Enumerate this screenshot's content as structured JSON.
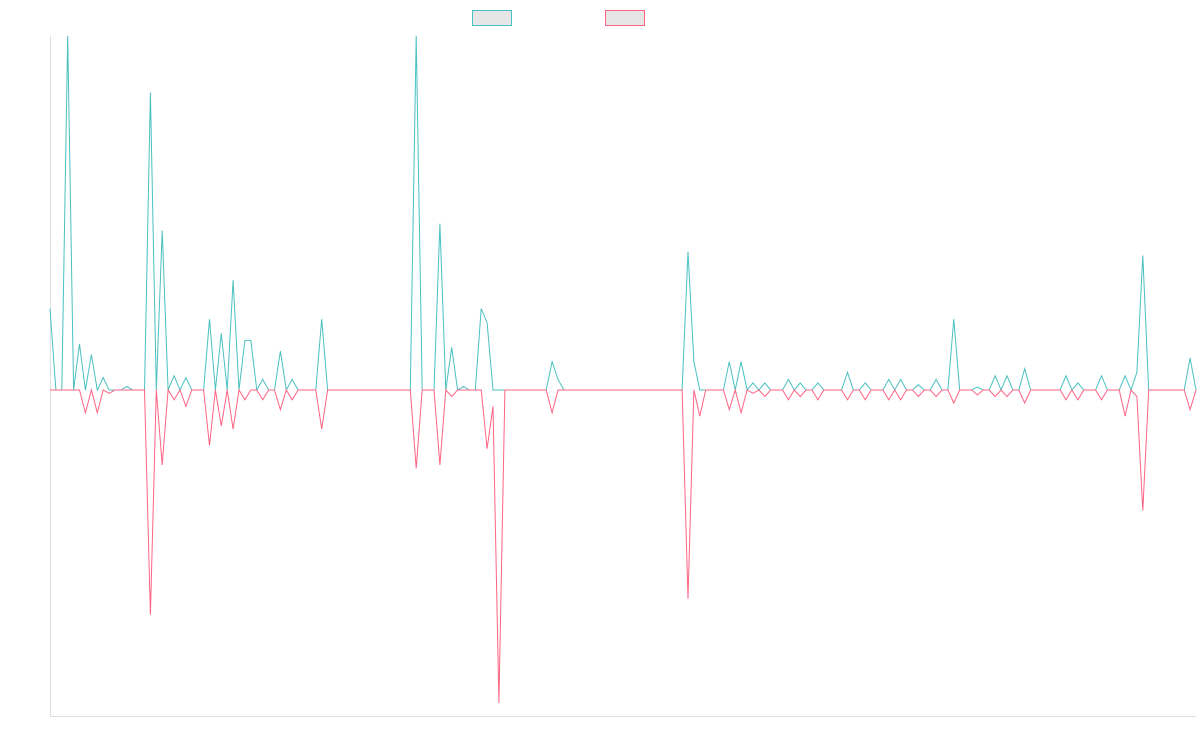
{
  "chart_data": {
    "type": "line",
    "title": "",
    "xlabel": "",
    "ylabel": "",
    "ylim": [
      -1,
      1
    ],
    "grid": false,
    "legend_position": "top-center",
    "n_points": 156,
    "series": [
      {
        "color": "#4bc0c0",
        "legend_fill": "#e6e6e6",
        "points": [
          [
            0,
            0.23
          ],
          [
            1,
            0
          ],
          [
            2,
            0
          ],
          [
            3,
            1.0
          ],
          [
            4,
            0
          ],
          [
            5,
            0.13
          ],
          [
            6,
            0
          ],
          [
            7,
            0.1
          ],
          [
            8,
            0
          ],
          [
            9,
            0.035
          ],
          [
            10,
            0
          ],
          [
            12,
            0
          ],
          [
            13,
            0.01
          ],
          [
            14,
            0
          ],
          [
            15,
            0
          ],
          [
            16,
            0
          ],
          [
            17,
            0.84
          ],
          [
            18,
            0
          ],
          [
            19,
            0.45
          ],
          [
            20,
            0
          ],
          [
            21,
            0.04
          ],
          [
            22,
            0
          ],
          [
            23,
            0.035
          ],
          [
            24,
            0
          ],
          [
            26,
            0
          ],
          [
            27,
            0.2
          ],
          [
            28,
            0
          ],
          [
            29,
            0.16
          ],
          [
            30,
            0
          ],
          [
            31,
            0.31
          ],
          [
            32,
            0
          ],
          [
            33,
            0.14
          ],
          [
            34,
            0.14
          ],
          [
            35,
            0
          ],
          [
            36,
            0.03
          ],
          [
            37,
            0
          ],
          [
            38,
            0
          ],
          [
            39,
            0.11
          ],
          [
            40,
            0
          ],
          [
            41,
            0.03
          ],
          [
            42,
            0
          ],
          [
            45,
            0
          ],
          [
            46,
            0.2
          ],
          [
            47,
            0
          ],
          [
            61,
            0
          ],
          [
            62,
            1.05
          ],
          [
            63,
            0
          ],
          [
            65,
            0
          ],
          [
            66,
            0.47
          ],
          [
            67,
            0
          ],
          [
            68,
            0.12
          ],
          [
            69,
            0
          ],
          [
            70,
            0.01
          ],
          [
            71,
            0
          ],
          [
            72,
            0
          ],
          [
            73,
            0.23
          ],
          [
            74,
            0.19
          ],
          [
            75,
            0
          ],
          [
            84,
            0
          ],
          [
            85,
            0.08
          ],
          [
            86,
            0.03
          ],
          [
            87,
            0
          ],
          [
            107,
            0
          ],
          [
            108,
            0.39
          ],
          [
            109,
            0.08
          ],
          [
            110,
            0
          ],
          [
            111,
            0
          ],
          [
            114,
            0
          ],
          [
            115,
            0.08
          ],
          [
            116,
            0
          ],
          [
            117,
            0.08
          ],
          [
            118,
            0
          ],
          [
            119,
            0.02
          ],
          [
            120,
            0
          ],
          [
            121,
            0.02
          ],
          [
            122,
            0
          ],
          [
            124,
            0
          ],
          [
            125,
            0.03
          ],
          [
            126,
            0
          ],
          [
            127,
            0.02
          ],
          [
            128,
            0
          ],
          [
            129,
            0
          ],
          [
            130,
            0.02
          ],
          [
            131,
            0
          ],
          [
            132,
            0
          ],
          [
            134,
            0
          ],
          [
            135,
            0.05
          ],
          [
            136,
            0
          ],
          [
            137,
            0
          ],
          [
            138,
            0.02
          ],
          [
            139,
            0
          ],
          [
            141,
            0
          ],
          [
            142,
            0.03
          ],
          [
            143,
            0
          ],
          [
            144,
            0.03
          ],
          [
            145,
            0
          ],
          [
            146,
            0
          ],
          [
            147,
            0.015
          ],
          [
            148,
            0
          ],
          [
            149,
            0
          ],
          [
            150,
            0.03
          ],
          [
            151,
            0
          ],
          [
            152,
            0
          ],
          [
            153,
            0.2
          ],
          [
            154,
            0
          ],
          [
            156,
            0
          ],
          [
            157,
            0.008
          ],
          [
            158,
            0
          ],
          [
            159,
            0
          ],
          [
            160,
            0.04
          ],
          [
            161,
            0
          ],
          [
            162,
            0.04
          ],
          [
            163,
            0
          ],
          [
            164,
            0
          ],
          [
            165,
            0.06
          ],
          [
            166,
            0
          ],
          [
            171,
            0
          ],
          [
            172,
            0.04
          ],
          [
            173,
            0
          ],
          [
            174,
            0.02
          ],
          [
            175,
            0
          ],
          [
            177,
            0
          ],
          [
            178,
            0.04
          ],
          [
            179,
            0
          ],
          [
            181,
            0
          ],
          [
            182,
            0.04
          ],
          [
            183,
            0
          ],
          [
            184,
            0.05
          ],
          [
            185,
            0.38
          ],
          [
            186,
            0
          ],
          [
            192,
            0
          ],
          [
            193,
            0.09
          ],
          [
            194,
            0
          ]
        ]
      },
      {
        "color": "#ff6384",
        "legend_fill": "#e6e6e6",
        "points": [
          [
            0,
            0
          ],
          [
            5,
            0
          ],
          [
            6,
            -0.07
          ],
          [
            7,
            0
          ],
          [
            8,
            -0.07
          ],
          [
            9,
            0
          ],
          [
            10,
            -0.01
          ],
          [
            11,
            0
          ],
          [
            16,
            0
          ],
          [
            17,
            -0.69
          ],
          [
            18,
            0
          ],
          [
            19,
            -0.23
          ],
          [
            20,
            0
          ],
          [
            21,
            -0.03
          ],
          [
            22,
            0
          ],
          [
            23,
            -0.05
          ],
          [
            24,
            0
          ],
          [
            26,
            0
          ],
          [
            27,
            -0.17
          ],
          [
            28,
            0
          ],
          [
            29,
            -0.11
          ],
          [
            30,
            0
          ],
          [
            31,
            -0.12
          ],
          [
            32,
            0
          ],
          [
            33,
            -0.03
          ],
          [
            34,
            0
          ],
          [
            35,
            0
          ],
          [
            36,
            -0.03
          ],
          [
            37,
            0
          ],
          [
            38,
            0
          ],
          [
            39,
            -0.06
          ],
          [
            40,
            0
          ],
          [
            41,
            -0.03
          ],
          [
            42,
            0
          ],
          [
            45,
            0
          ],
          [
            46,
            -0.12
          ],
          [
            47,
            0
          ],
          [
            61,
            0
          ],
          [
            62,
            -0.24
          ],
          [
            63,
            0
          ],
          [
            65,
            0
          ],
          [
            66,
            -0.23
          ],
          [
            67,
            0
          ],
          [
            68,
            -0.02
          ],
          [
            69,
            0
          ],
          [
            73,
            0
          ],
          [
            74,
            -0.18
          ],
          [
            75,
            -0.05
          ],
          [
            76,
            -0.96
          ],
          [
            77,
            0
          ],
          [
            84,
            0
          ],
          [
            85,
            -0.07
          ],
          [
            86,
            0
          ],
          [
            87,
            0
          ],
          [
            107,
            0
          ],
          [
            108,
            -0.64
          ],
          [
            109,
            0
          ],
          [
            110,
            -0.08
          ],
          [
            111,
            0
          ],
          [
            114,
            0
          ],
          [
            115,
            -0.06
          ],
          [
            116,
            0
          ],
          [
            117,
            -0.07
          ],
          [
            118,
            0
          ],
          [
            119,
            -0.01
          ],
          [
            120,
            0
          ],
          [
            121,
            -0.02
          ],
          [
            122,
            0
          ],
          [
            124,
            0
          ],
          [
            125,
            -0.03
          ],
          [
            126,
            0
          ],
          [
            127,
            -0.02
          ],
          [
            128,
            0
          ],
          [
            129,
            0
          ],
          [
            130,
            -0.03
          ],
          [
            131,
            0
          ],
          [
            132,
            0
          ],
          [
            134,
            0
          ],
          [
            135,
            -0.03
          ],
          [
            136,
            0
          ],
          [
            137,
            0
          ],
          [
            138,
            -0.03
          ],
          [
            139,
            0
          ],
          [
            141,
            0
          ],
          [
            142,
            -0.03
          ],
          [
            143,
            0
          ],
          [
            144,
            -0.03
          ],
          [
            145,
            0
          ],
          [
            146,
            0
          ],
          [
            147,
            -0.02
          ],
          [
            148,
            0
          ],
          [
            149,
            0
          ],
          [
            150,
            -0.02
          ],
          [
            151,
            0
          ],
          [
            152,
            0
          ],
          [
            153,
            -0.04
          ],
          [
            154,
            0
          ],
          [
            156,
            0
          ],
          [
            157,
            -0.015
          ],
          [
            158,
            0
          ],
          [
            159,
            0
          ],
          [
            160,
            -0.02
          ],
          [
            161,
            0
          ],
          [
            162,
            -0.02
          ],
          [
            163,
            0
          ],
          [
            164,
            0
          ],
          [
            165,
            -0.04
          ],
          [
            166,
            0
          ],
          [
            171,
            0
          ],
          [
            172,
            -0.03
          ],
          [
            173,
            0
          ],
          [
            174,
            -0.03
          ],
          [
            175,
            0
          ],
          [
            177,
            0
          ],
          [
            178,
            -0.03
          ],
          [
            179,
            0
          ],
          [
            181,
            0
          ],
          [
            182,
            -0.08
          ],
          [
            183,
            0
          ],
          [
            184,
            -0.02
          ],
          [
            185,
            -0.37
          ],
          [
            186,
            0
          ],
          [
            192,
            0
          ],
          [
            193,
            -0.06
          ],
          [
            194,
            0
          ]
        ]
      }
    ],
    "xlim": [
      0,
      194
    ]
  }
}
